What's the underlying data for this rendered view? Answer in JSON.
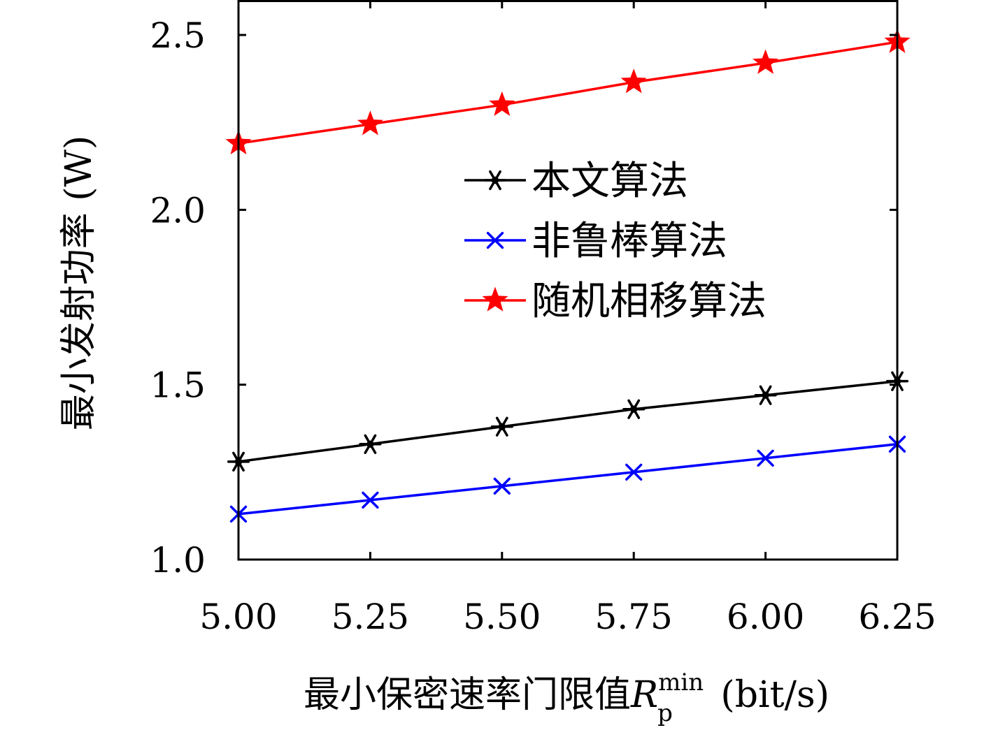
{
  "chart_data": {
    "type": "line",
    "title": "",
    "xlabel_main": "最小保密速率门限值",
    "xlabel_var": "R",
    "xlabel_sub": "p",
    "xlabel_sup": "min",
    "xlabel_unit": "(bit/s)",
    "ylabel": "最小发射功率 (W)",
    "x": [
      5.0,
      5.25,
      5.5,
      5.75,
      6.0,
      6.25
    ],
    "x_tick_labels": [
      "5.00",
      "5.25",
      "5.50",
      "5.75",
      "6.00",
      "6.25"
    ],
    "y_ticks": [
      1.0,
      1.5,
      2.0,
      2.5
    ],
    "y_tick_labels": [
      "1.0",
      "1.5",
      "2.0",
      "2.5"
    ],
    "xlim": [
      5.0,
      6.25
    ],
    "ylim": [
      1.0,
      2.6
    ],
    "grid": false,
    "legend_position": "center-right",
    "series": [
      {
        "name": "本文算法",
        "color": "#000000",
        "marker": "asterisk",
        "values": [
          1.28,
          1.33,
          1.38,
          1.43,
          1.47,
          1.51
        ]
      },
      {
        "name": "非鲁棒算法",
        "color": "#0000ff",
        "marker": "x",
        "values": [
          1.13,
          1.17,
          1.21,
          1.25,
          1.29,
          1.33
        ]
      },
      {
        "name": "随机相移算法",
        "color": "#ff0000",
        "marker": "star",
        "values": [
          2.19,
          2.245,
          2.3,
          2.365,
          2.42,
          2.48
        ]
      }
    ]
  }
}
